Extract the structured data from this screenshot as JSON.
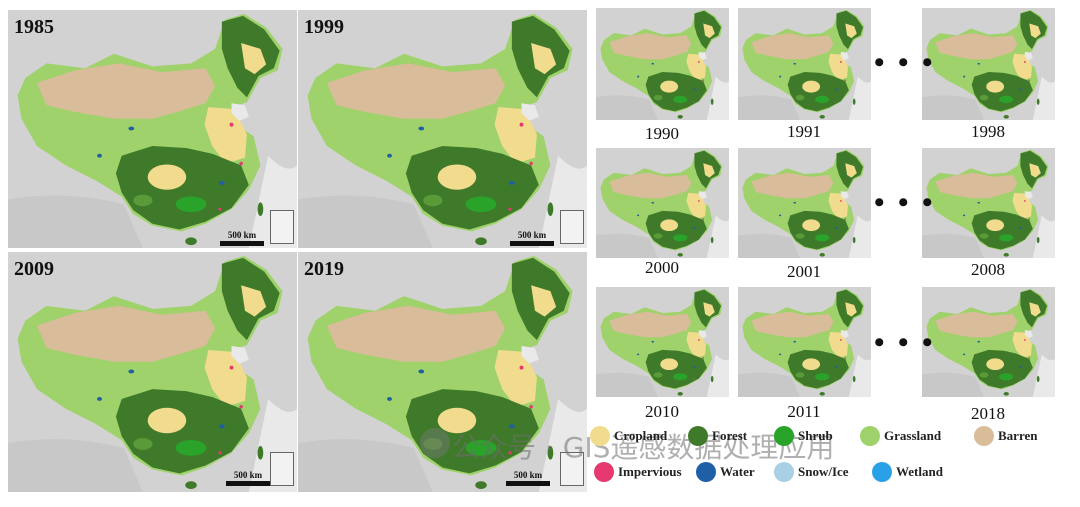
{
  "big_maps": [
    {
      "year": "1985",
      "scale_label": "500 km"
    },
    {
      "year": "1999",
      "scale_label": "500 km"
    },
    {
      "year": "2009",
      "scale_label": "500 km"
    },
    {
      "year": "2019",
      "scale_label": "500 km"
    }
  ],
  "small_maps": [
    {
      "year": "1990"
    },
    {
      "year": "1991"
    },
    {
      "year": "1998"
    },
    {
      "year": "2000"
    },
    {
      "year": "2001"
    },
    {
      "year": "2008"
    },
    {
      "year": "2010"
    },
    {
      "year": "2011"
    },
    {
      "year": "2018"
    }
  ],
  "ellipsis": "• • •",
  "legend": [
    {
      "label": "Cropland",
      "color": "#f1dc8e"
    },
    {
      "label": "Forest",
      "color": "#3f7a2a"
    },
    {
      "label": "Shrub",
      "color": "#29a329"
    },
    {
      "label": "Grassland",
      "color": "#9fd26a"
    },
    {
      "label": "Barren",
      "color": "#d9bc9a"
    },
    {
      "label": "Impervious",
      "color": "#e5396f"
    },
    {
      "label": "Water",
      "color": "#1f5fa8"
    },
    {
      "label": "Snow/Ice",
      "color": "#a8cfe4"
    },
    {
      "label": "Wetland",
      "color": "#2aa0e6"
    }
  ],
  "watermark": "公众号 · GIS遥感数据处理应用"
}
